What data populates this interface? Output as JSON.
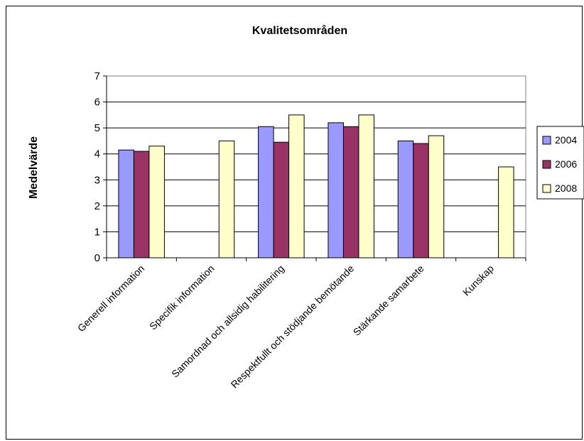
{
  "chart_data": {
    "type": "bar",
    "title": "Kvalitetsområden",
    "xlabel": "",
    "ylabel": "Medelvärde",
    "ylim": [
      0,
      7
    ],
    "yticks": [
      0,
      1,
      2,
      3,
      4,
      5,
      6,
      7
    ],
    "grid": true,
    "legend": "right",
    "categories": [
      "Generell information",
      "Specifik information",
      "Samordnad och allsidig habilitering",
      "Respektfullt  och stödjande bemötande",
      "Stärkande samarbete",
      "Kunskap"
    ],
    "series": [
      {
        "name": "2004",
        "color": "#9999ff",
        "values": [
          4.15,
          null,
          5.05,
          5.2,
          4.5,
          null
        ]
      },
      {
        "name": "2006",
        "color": "#993366",
        "values": [
          4.1,
          null,
          4.45,
          5.05,
          4.4,
          null
        ]
      },
      {
        "name": "2008",
        "color": "#ffffcc",
        "values": [
          4.3,
          4.5,
          5.5,
          5.5,
          4.7,
          3.5
        ]
      }
    ]
  }
}
